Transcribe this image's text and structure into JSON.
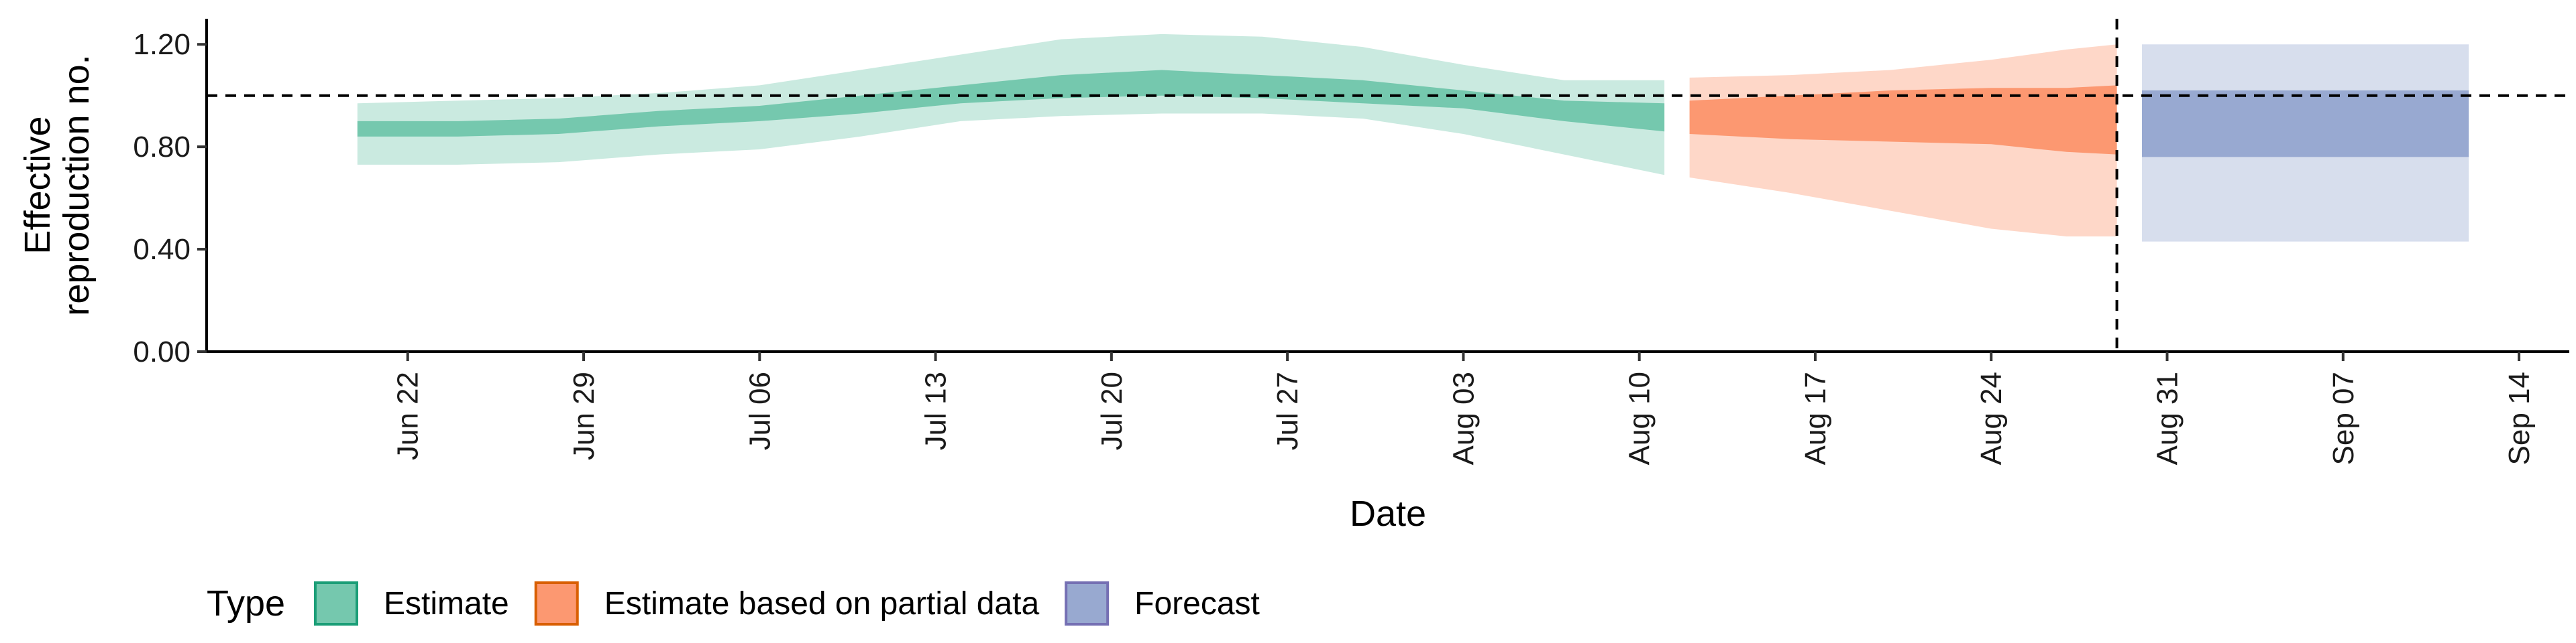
{
  "chart_data": {
    "type": "area",
    "xlabel": "Date",
    "ylabel_lines": [
      "Effective",
      "reproduction no."
    ],
    "ylim": [
      0,
      1.3
    ],
    "yticks": [
      0,
      0.4,
      0.8,
      1.2
    ],
    "ytick_labels": [
      "0.00",
      "0.40",
      "0.80",
      "1.20"
    ],
    "xlim": [
      "2020-06-14",
      "2020-09-16"
    ],
    "xticks": [
      "2020-06-22",
      "2020-06-29",
      "2020-07-06",
      "2020-07-13",
      "2020-07-20",
      "2020-07-27",
      "2020-08-03",
      "2020-08-10",
      "2020-08-17",
      "2020-08-24",
      "2020-08-31",
      "2020-09-07",
      "2020-09-14"
    ],
    "xtick_labels": [
      "Jun 22",
      "Jun 29",
      "Jul 06",
      "Jul 13",
      "Jul 20",
      "Jul 27",
      "Aug 03",
      "Aug 10",
      "Aug 17",
      "Aug 24",
      "Aug 31",
      "Sep 07",
      "Sep 14"
    ],
    "reference_line_y": 1.0,
    "reference_line_x": "2020-08-29",
    "grid": false,
    "legend": {
      "position": "bottom-left",
      "title": "Type",
      "entries": [
        "Estimate",
        "Estimate based on partial data",
        "Forecast"
      ]
    },
    "series": [
      {
        "name": "Estimate",
        "fill_color": "#66c2a5",
        "border_color": "#1b9e77",
        "points": [
          {
            "date": "2020-06-20",
            "lower90": 0.73,
            "lower50": 0.84,
            "upper50": 0.9,
            "upper90": 0.97
          },
          {
            "date": "2020-06-24",
            "lower90": 0.73,
            "lower50": 0.84,
            "upper50": 0.9,
            "upper90": 0.98
          },
          {
            "date": "2020-06-28",
            "lower90": 0.74,
            "lower50": 0.85,
            "upper50": 0.91,
            "upper90": 0.99
          },
          {
            "date": "2020-07-02",
            "lower90": 0.77,
            "lower50": 0.88,
            "upper50": 0.94,
            "upper90": 1.01
          },
          {
            "date": "2020-07-06",
            "lower90": 0.79,
            "lower50": 0.9,
            "upper50": 0.96,
            "upper90": 1.04
          },
          {
            "date": "2020-07-10",
            "lower90": 0.84,
            "lower50": 0.93,
            "upper50": 1.0,
            "upper90": 1.1
          },
          {
            "date": "2020-07-14",
            "lower90": 0.9,
            "lower50": 0.97,
            "upper50": 1.04,
            "upper90": 1.16
          },
          {
            "date": "2020-07-18",
            "lower90": 0.92,
            "lower50": 0.99,
            "upper50": 1.08,
            "upper90": 1.22
          },
          {
            "date": "2020-07-22",
            "lower90": 0.93,
            "lower50": 1.0,
            "upper50": 1.1,
            "upper90": 1.24
          },
          {
            "date": "2020-07-26",
            "lower90": 0.93,
            "lower50": 0.99,
            "upper50": 1.08,
            "upper90": 1.23
          },
          {
            "date": "2020-07-30",
            "lower90": 0.91,
            "lower50": 0.97,
            "upper50": 1.06,
            "upper90": 1.19
          },
          {
            "date": "2020-08-03",
            "lower90": 0.85,
            "lower50": 0.95,
            "upper50": 1.02,
            "upper90": 1.12
          },
          {
            "date": "2020-08-07",
            "lower90": 0.77,
            "lower50": 0.9,
            "upper50": 0.98,
            "upper90": 1.06
          },
          {
            "date": "2020-08-11",
            "lower90": 0.69,
            "lower50": 0.86,
            "upper50": 0.97,
            "upper90": 1.06
          }
        ]
      },
      {
        "name": "Estimate based on partial data",
        "fill_color": "#fc8d62",
        "border_color": "#d95f02",
        "points": [
          {
            "date": "2020-08-12",
            "lower90": 0.68,
            "lower50": 0.85,
            "upper50": 0.98,
            "upper90": 1.07
          },
          {
            "date": "2020-08-16",
            "lower90": 0.62,
            "lower50": 0.83,
            "upper50": 1.0,
            "upper90": 1.08
          },
          {
            "date": "2020-08-20",
            "lower90": 0.55,
            "lower50": 0.82,
            "upper50": 1.02,
            "upper90": 1.1
          },
          {
            "date": "2020-08-24",
            "lower90": 0.48,
            "lower50": 0.81,
            "upper50": 1.03,
            "upper90": 1.14
          },
          {
            "date": "2020-08-27",
            "lower90": 0.45,
            "lower50": 0.78,
            "upper50": 1.03,
            "upper90": 1.18
          },
          {
            "date": "2020-08-29",
            "lower90": 0.45,
            "lower50": 0.77,
            "upper50": 1.04,
            "upper90": 1.2
          }
        ]
      },
      {
        "name": "Forecast",
        "fill_color": "#8da0cb",
        "border_color": "#7570b3",
        "points": [
          {
            "date": "2020-08-30",
            "lower90": 0.43,
            "lower50": 0.76,
            "upper50": 1.02,
            "upper90": 1.2
          },
          {
            "date": "2020-09-12",
            "lower90": 0.43,
            "lower50": 0.76,
            "upper50": 1.02,
            "upper90": 1.2
          }
        ]
      }
    ]
  }
}
